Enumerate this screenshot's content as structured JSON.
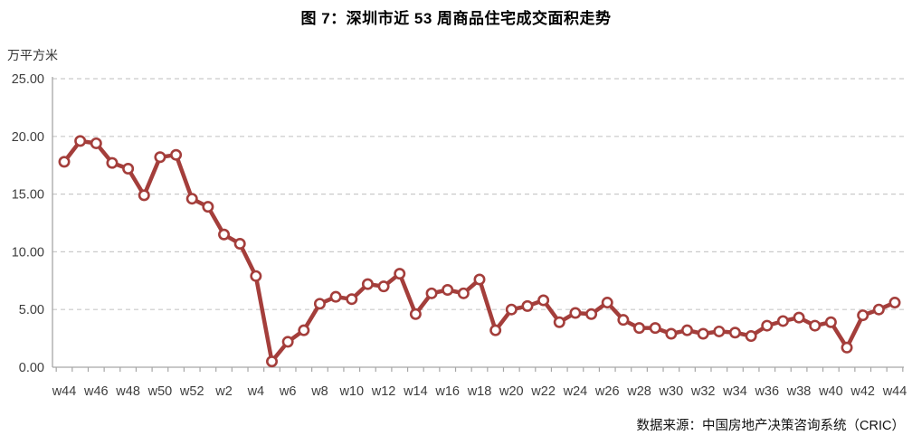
{
  "page": {
    "title": "图 7：深圳市近 53 周商品住宅成交面积走势",
    "unit_label": "万平方米",
    "source": "数据来源：中国房地产决策咨询系统（CRIC）"
  },
  "chart_data": {
    "type": "line",
    "title": "图 7：深圳市近 53 周商品住宅成交面积走势",
    "ylabel": "万平方米",
    "xlabel": "",
    "categories": [
      "w44",
      "w45",
      "w46",
      "w47",
      "w48",
      "w49",
      "w50",
      "w51",
      "w52",
      "w1",
      "w2",
      "w3",
      "w4",
      "w5",
      "w6",
      "w7",
      "w8",
      "w9",
      "w10",
      "w11",
      "w12",
      "w13",
      "w14",
      "w15",
      "w16",
      "w17",
      "w18",
      "w19",
      "w20",
      "w21",
      "w22",
      "w23",
      "w24",
      "w25",
      "w26",
      "w27",
      "w28",
      "w29",
      "w30",
      "w31",
      "w32",
      "w33",
      "w34",
      "w35",
      "w36",
      "w37",
      "w38",
      "w39",
      "w40",
      "w41",
      "w42",
      "w43",
      "w44"
    ],
    "values": [
      17.8,
      19.6,
      19.4,
      17.7,
      17.2,
      14.9,
      18.2,
      18.4,
      14.6,
      13.9,
      11.5,
      10.7,
      7.9,
      0.5,
      2.2,
      3.2,
      5.5,
      6.1,
      5.9,
      7.2,
      7.0,
      8.1,
      4.6,
      6.4,
      6.7,
      6.4,
      7.6,
      3.2,
      5.0,
      5.3,
      5.8,
      3.9,
      4.7,
      4.6,
      5.6,
      4.1,
      3.4,
      3.4,
      2.9,
      3.2,
      2.9,
      3.1,
      3.0,
      2.7,
      3.6,
      4.0,
      4.3,
      3.6,
      3.9,
      1.7,
      4.5,
      5.0,
      5.6
    ],
    "x_tick_labels": [
      "w44",
      "w46",
      "w48",
      "w50",
      "w52",
      "w2",
      "w4",
      "w6",
      "w8",
      "w10",
      "w12",
      "w14",
      "w16",
      "w18",
      "w20",
      "w22",
      "w24",
      "w26",
      "w28",
      "w30",
      "w32",
      "w34",
      "w36",
      "w38",
      "w40",
      "w42",
      "w44"
    ],
    "x_tick_label_every": 2,
    "y_ticks": [
      0,
      5,
      10,
      15,
      20,
      25
    ],
    "y_tick_labels": [
      "0.00",
      "5.00",
      "10.00",
      "15.00",
      "20.00",
      "25.00"
    ],
    "ylim": [
      0,
      25
    ],
    "grid": "horizontal-dashed",
    "legend": "none",
    "line_color": "#A43E3B",
    "marker_fill": "#FFFFFF",
    "grid_color": "#C9C9C9",
    "axis_color": "#A6A6A6",
    "tick_label_color": "#3D3D3D",
    "source": "数据来源：中国房地产决策咨询系统（CRIC）"
  }
}
